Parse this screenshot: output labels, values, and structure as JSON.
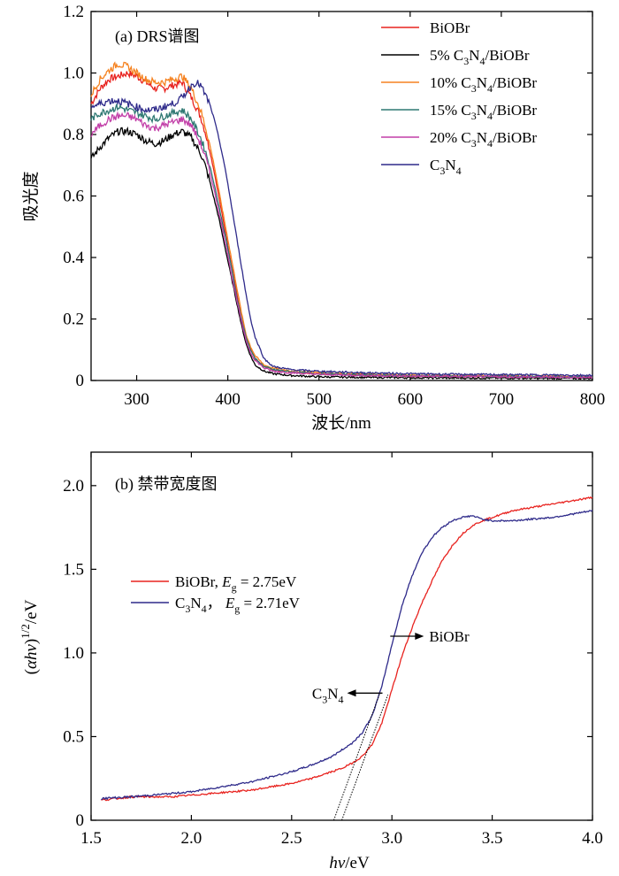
{
  "chart_data": [
    {
      "type": "line",
      "title": "(a) DRS谱图",
      "xlabel": "波长/nm",
      "ylabel": "吸光度",
      "xlim": [
        250,
        800
      ],
      "ylim": [
        0,
        1.2
      ],
      "xticks": [
        300,
        400,
        500,
        600,
        700,
        800
      ],
      "yticks": [
        0,
        0.2,
        0.4,
        0.6,
        0.8,
        1.0,
        1.2
      ],
      "ytick_labels": [
        "0",
        "0.2",
        "0.4",
        "0.6",
        "0.8",
        "1.0",
        "1.2"
      ],
      "legend_position": "top-right",
      "series": [
        {
          "name": "BiOBr",
          "label_parts": [
            "BiOBr"
          ],
          "color": "#e8231f",
          "x": [
            250,
            260,
            270,
            280,
            290,
            300,
            310,
            320,
            330,
            340,
            350,
            360,
            370,
            375,
            380,
            385,
            390,
            395,
            400,
            405,
            410,
            415,
            420,
            425,
            430,
            440,
            450,
            470,
            500,
            550,
            600,
            650,
            700,
            750,
            800
          ],
          "y": [
            0.9,
            0.95,
            0.98,
            0.99,
            1.0,
            0.99,
            0.97,
            0.95,
            0.95,
            0.96,
            0.97,
            0.92,
            0.86,
            0.81,
            0.75,
            0.68,
            0.6,
            0.52,
            0.44,
            0.36,
            0.28,
            0.2,
            0.14,
            0.1,
            0.07,
            0.045,
            0.035,
            0.028,
            0.022,
            0.018,
            0.015,
            0.014,
            0.013,
            0.012,
            0.011
          ]
        },
        {
          "name": "5%  C3N4/BiOBr",
          "label_parts": [
            "5%  C",
            "3",
            "N",
            "4",
            "/BiOBr"
          ],
          "color": "#000000",
          "x": [
            250,
            260,
            270,
            280,
            290,
            300,
            310,
            320,
            330,
            340,
            350,
            360,
            370,
            375,
            380,
            385,
            390,
            395,
            400,
            405,
            410,
            415,
            420,
            425,
            430,
            440,
            450,
            470,
            500,
            550,
            600,
            650,
            700,
            750,
            800
          ],
          "y": [
            0.72,
            0.76,
            0.79,
            0.81,
            0.81,
            0.8,
            0.78,
            0.77,
            0.78,
            0.8,
            0.81,
            0.79,
            0.74,
            0.7,
            0.65,
            0.59,
            0.53,
            0.46,
            0.39,
            0.32,
            0.25,
            0.18,
            0.12,
            0.08,
            0.05,
            0.03,
            0.022,
            0.016,
            0.012,
            0.01,
            0.009,
            0.008,
            0.008,
            0.007,
            0.007
          ]
        },
        {
          "name": "10%  C3N4/BiOBr",
          "label_parts": [
            "10%  C",
            "3",
            "N",
            "4",
            "/BiOBr"
          ],
          "color": "#f58220",
          "x": [
            250,
            260,
            270,
            280,
            290,
            300,
            310,
            320,
            330,
            340,
            350,
            360,
            370,
            375,
            380,
            385,
            390,
            395,
            400,
            405,
            410,
            415,
            420,
            425,
            430,
            440,
            450,
            470,
            500,
            550,
            600,
            650,
            700,
            750,
            800
          ],
          "y": [
            0.93,
            0.98,
            1.01,
            1.03,
            1.02,
            1.0,
            0.98,
            0.97,
            0.97,
            0.98,
            0.99,
            0.95,
            0.88,
            0.83,
            0.77,
            0.7,
            0.62,
            0.54,
            0.46,
            0.38,
            0.3,
            0.22,
            0.15,
            0.11,
            0.08,
            0.05,
            0.04,
            0.031,
            0.025,
            0.02,
            0.017,
            0.016,
            0.015,
            0.014,
            0.013
          ]
        },
        {
          "name": "15%  C3N4/BiOBr",
          "label_parts": [
            "15%  C",
            "3",
            "N",
            "4",
            "/BiOBr"
          ],
          "color": "#2e7872",
          "x": [
            250,
            260,
            270,
            280,
            290,
            300,
            310,
            320,
            330,
            340,
            350,
            360,
            370,
            375,
            380,
            385,
            390,
            395,
            400,
            405,
            410,
            415,
            420,
            425,
            430,
            440,
            450,
            470,
            500,
            550,
            600,
            650,
            700,
            750,
            800
          ],
          "y": [
            0.85,
            0.87,
            0.88,
            0.89,
            0.88,
            0.87,
            0.86,
            0.85,
            0.86,
            0.87,
            0.88,
            0.85,
            0.79,
            0.75,
            0.7,
            0.64,
            0.57,
            0.5,
            0.43,
            0.35,
            0.27,
            0.2,
            0.14,
            0.1,
            0.07,
            0.045,
            0.035,
            0.028,
            0.022,
            0.018,
            0.015,
            0.014,
            0.013,
            0.012,
            0.011
          ]
        },
        {
          "name": "20%  C3N4/BiOBr",
          "label_parts": [
            "20%  C",
            "3",
            "N",
            "4",
            "/BiOBr"
          ],
          "color": "#c23fa8",
          "x": [
            250,
            260,
            270,
            280,
            290,
            300,
            310,
            320,
            330,
            340,
            350,
            360,
            370,
            375,
            380,
            385,
            390,
            395,
            400,
            405,
            410,
            415,
            420,
            425,
            430,
            440,
            450,
            470,
            500,
            550,
            600,
            650,
            700,
            750,
            800
          ],
          "y": [
            0.8,
            0.83,
            0.85,
            0.86,
            0.86,
            0.85,
            0.83,
            0.82,
            0.83,
            0.84,
            0.85,
            0.83,
            0.77,
            0.73,
            0.68,
            0.62,
            0.55,
            0.48,
            0.41,
            0.33,
            0.26,
            0.19,
            0.13,
            0.09,
            0.065,
            0.04,
            0.03,
            0.025,
            0.02,
            0.016,
            0.014,
            0.013,
            0.012,
            0.011,
            0.01
          ]
        },
        {
          "name": "C3N4",
          "label_parts": [
            "C",
            "3",
            "N",
            "4"
          ],
          "color": "#2e2a8a",
          "x": [
            250,
            260,
            270,
            280,
            290,
            300,
            310,
            320,
            330,
            340,
            350,
            360,
            365,
            370,
            375,
            380,
            385,
            390,
            395,
            400,
            405,
            410,
            415,
            420,
            425,
            430,
            440,
            450,
            470,
            500,
            550,
            600,
            650,
            700,
            750,
            800
          ],
          "y": [
            0.89,
            0.9,
            0.91,
            0.91,
            0.9,
            0.89,
            0.88,
            0.88,
            0.89,
            0.9,
            0.92,
            0.96,
            0.97,
            0.96,
            0.93,
            0.9,
            0.85,
            0.79,
            0.72,
            0.64,
            0.55,
            0.46,
            0.37,
            0.28,
            0.2,
            0.14,
            0.07,
            0.045,
            0.035,
            0.03,
            0.025,
            0.022,
            0.02,
            0.019,
            0.018,
            0.017
          ]
        }
      ]
    },
    {
      "type": "line",
      "title": "(b) 禁带宽度图",
      "xlabel": "hν/eV",
      "ylabel": "(αhν)^1/2/eV",
      "xlim": [
        1.5,
        4.0
      ],
      "ylim": [
        0,
        2.2
      ],
      "xticks": [
        1.5,
        2.0,
        2.5,
        3.0,
        3.5,
        4.0
      ],
      "xtick_labels": [
        "1.5",
        "2.0",
        "2.5",
        "3.0",
        "3.5",
        "4.0"
      ],
      "yticks": [
        0,
        0.5,
        1.0,
        1.5,
        2.0
      ],
      "ytick_labels": [
        "0",
        "0.5",
        "1.0",
        "1.5",
        "2.0"
      ],
      "legend_position": "middle-left",
      "series": [
        {
          "name": "BiOBr, Eg = 2.75eV",
          "color": "#e8231f",
          "x": [
            1.55,
            1.7,
            1.8,
            1.9,
            2.0,
            2.1,
            2.2,
            2.3,
            2.4,
            2.5,
            2.6,
            2.7,
            2.75,
            2.8,
            2.85,
            2.9,
            2.95,
            3.0,
            3.05,
            3.1,
            3.15,
            3.2,
            3.25,
            3.3,
            3.35,
            3.4,
            3.45,
            3.5,
            3.6,
            3.7,
            3.8,
            3.9,
            4.0
          ],
          "y": [
            0.12,
            0.14,
            0.14,
            0.14,
            0.15,
            0.16,
            0.17,
            0.18,
            0.2,
            0.22,
            0.25,
            0.29,
            0.31,
            0.34,
            0.38,
            0.45,
            0.58,
            0.78,
            0.98,
            1.15,
            1.3,
            1.43,
            1.55,
            1.64,
            1.71,
            1.76,
            1.79,
            1.81,
            1.85,
            1.87,
            1.89,
            1.91,
            1.93
          ]
        },
        {
          "name": "C3N4, Eg = 2.71eV",
          "color": "#2e2a8a",
          "x": [
            1.55,
            1.7,
            1.8,
            1.9,
            2.0,
            2.1,
            2.2,
            2.3,
            2.4,
            2.5,
            2.6,
            2.7,
            2.75,
            2.8,
            2.85,
            2.9,
            2.95,
            3.0,
            3.05,
            3.1,
            3.15,
            3.2,
            3.25,
            3.3,
            3.35,
            3.4,
            3.45,
            3.5,
            3.6,
            3.7,
            3.8,
            3.9,
            4.0
          ],
          "y": [
            0.13,
            0.14,
            0.15,
            0.16,
            0.17,
            0.19,
            0.21,
            0.23,
            0.26,
            0.29,
            0.33,
            0.38,
            0.42,
            0.46,
            0.52,
            0.62,
            0.8,
            1.05,
            1.28,
            1.46,
            1.6,
            1.69,
            1.75,
            1.79,
            1.81,
            1.82,
            1.8,
            1.79,
            1.79,
            1.8,
            1.81,
            1.83,
            1.85
          ]
        }
      ],
      "tangents": [
        {
          "series": "BiOBr",
          "x": [
            2.75,
            2.98
          ],
          "y": [
            0,
            0.75
          ]
        },
        {
          "series": "C3N4",
          "x": [
            2.71,
            2.94
          ],
          "y": [
            0,
            0.76
          ]
        }
      ],
      "annotations": [
        {
          "text": "BiOBr",
          "target": "BiOBr",
          "at": [
            3.08,
            1.1
          ],
          "arrow": "right"
        },
        {
          "text": "C3N4",
          "parts": [
            "C",
            "3",
            "N",
            "4"
          ],
          "target": "C3N4",
          "at": [
            2.9,
            0.76
          ],
          "arrow": "left"
        }
      ],
      "legend": [
        {
          "parts": [
            "BiOBr,",
            "E",
            "g",
            " = 2.75eV"
          ],
          "color": "#e8231f"
        },
        {
          "parts": [
            "C",
            "3",
            "N",
            "4",
            "，",
            "E",
            "g",
            " = 2.71eV"
          ],
          "color": "#2e2a8a"
        }
      ]
    }
  ]
}
